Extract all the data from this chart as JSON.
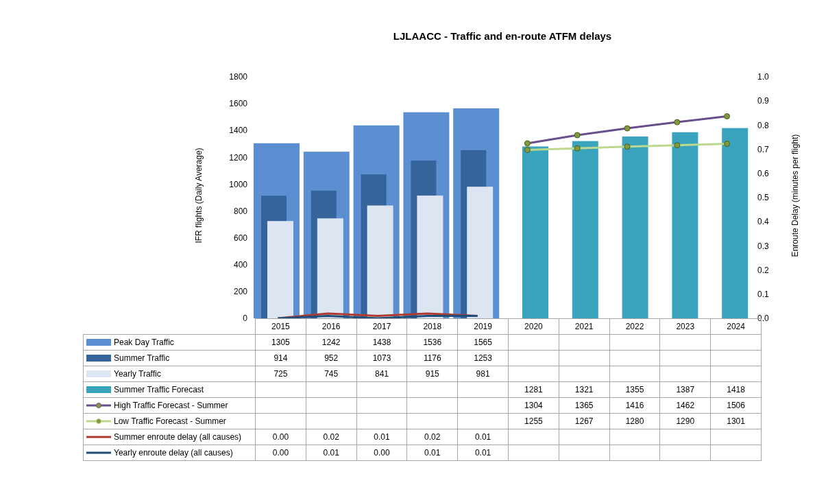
{
  "chart_data": {
    "type": "bar",
    "title": "LJLAACC - Traffic and en-route ATFM delays",
    "ylabel": "IFR flights (Daily Average)",
    "y2label": "Enroute Delay (minutes per flight)",
    "categories": [
      "2015",
      "2016",
      "2017",
      "2018",
      "2019",
      "2020",
      "2021",
      "2022",
      "2023",
      "2024"
    ],
    "ylim": [
      0,
      1800
    ],
    "yticks": [
      0,
      200,
      400,
      600,
      800,
      1000,
      1200,
      1400,
      1600,
      1800
    ],
    "y2lim": [
      0,
      1
    ],
    "y2ticks": [
      {
        "value": 0,
        "label": "0.0"
      },
      {
        "value": 0.1,
        "label": "0.1"
      },
      {
        "value": 0.2,
        "label": "0.2"
      },
      {
        "value": 0.3,
        "label": "0.3"
      },
      {
        "value": 0.4,
        "label": "0.4"
      },
      {
        "value": 0.5,
        "label": "0.5"
      },
      {
        "value": 0.6,
        "label": "0.6"
      },
      {
        "value": 0.7,
        "label": "0.7"
      },
      {
        "value": 0.8,
        "label": "0.8"
      },
      {
        "value": 0.9,
        "label": "0.9"
      },
      {
        "value": 1,
        "label": "1.0"
      }
    ],
    "legend": "bottom",
    "data_labels": true,
    "line_style": "solid",
    "series": [
      {
        "name": "Peak Day Traffic",
        "color": "#5b8fd2",
        "values": [
          1305,
          1242,
          1438,
          1536,
          1565,
          null,
          null,
          null,
          null,
          null
        ]
      },
      {
        "name": "Summer Traffic",
        "color": "#34649a",
        "values": [
          914,
          952,
          1073,
          1176,
          1253,
          null,
          null,
          null,
          null,
          null
        ]
      },
      {
        "name": "Yearly Traffic",
        "color": "#dce5f1",
        "values": [
          725,
          745,
          841,
          915,
          981,
          null,
          null,
          null,
          null,
          null
        ]
      },
      {
        "name": "Summer Traffic Forecast",
        "color": "#3aa3be",
        "values": [
          null,
          null,
          null,
          null,
          null,
          1281,
          1321,
          1355,
          1387,
          1418
        ]
      },
      {
        "name": "High Traffic Forecast - Summer",
        "type": "line",
        "marker": "circle",
        "color": "#6a4d8c",
        "values": [
          null,
          null,
          null,
          null,
          null,
          1304,
          1365,
          1416,
          1462,
          1506
        ]
      },
      {
        "name": "Low Traffic Forecast - Summer",
        "type": "line",
        "marker": "circle",
        "color": "#bcd98f",
        "values": [
          null,
          null,
          null,
          null,
          null,
          1255,
          1267,
          1280,
          1290,
          1301
        ]
      },
      {
        "name": "Summer enroute delay (all causes)",
        "type": "line",
        "axis": "y2",
        "color": "#b03a2e",
        "values": [
          0.0,
          0.02,
          0.01,
          0.02,
          0.01,
          null,
          null,
          null,
          null,
          null
        ],
        "value_labels": [
          "0.00",
          "0.02",
          "0.01",
          "0.02",
          "0.01",
          null,
          null,
          null,
          null,
          null
        ]
      },
      {
        "name": "Yearly enroute delay (all causes)",
        "type": "line",
        "axis": "y2",
        "color": "#1f4e79",
        "values": [
          0.0,
          0.01,
          0.0,
          0.01,
          0.01,
          null,
          null,
          null,
          null,
          null
        ],
        "value_labels": [
          "0.00",
          "0.01",
          "0.00",
          "0.01",
          "0.01",
          null,
          null,
          null,
          null,
          null
        ]
      }
    ]
  }
}
